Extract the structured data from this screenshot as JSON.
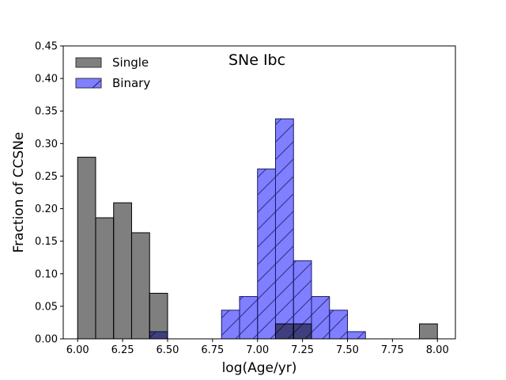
{
  "chart_data": {
    "type": "bar",
    "title": "SNe Ibc",
    "xlabel": "log(Age/yr)",
    "ylabel": "Fraction of CCSNe",
    "xlim": [
      5.92,
      8.1
    ],
    "ylim": [
      0.0,
      0.45
    ],
    "x_ticks": [
      "6.00",
      "6.25",
      "6.50",
      "6.75",
      "7.00",
      "7.25",
      "7.50",
      "7.75",
      "8.00"
    ],
    "x_tick_values": [
      6.0,
      6.25,
      6.5,
      6.75,
      7.0,
      7.25,
      7.5,
      7.75,
      8.0
    ],
    "y_ticks": [
      "0.00",
      "0.05",
      "0.10",
      "0.15",
      "0.20",
      "0.25",
      "0.30",
      "0.35",
      "0.40",
      "0.45"
    ],
    "y_tick_values": [
      0.0,
      0.05,
      0.1,
      0.15,
      0.2,
      0.25,
      0.3,
      0.35,
      0.4,
      0.45
    ],
    "bin_width": 0.1,
    "legend_position": "top-left",
    "series": [
      {
        "name": "Binary",
        "color": "#0000ff",
        "edge_color": "#1a1a66",
        "hatch": "/",
        "bins": [
          {
            "x": 6.4,
            "value": 0.011
          },
          {
            "x": 6.8,
            "value": 0.044
          },
          {
            "x": 6.9,
            "value": 0.065
          },
          {
            "x": 7.0,
            "value": 0.261
          },
          {
            "x": 7.1,
            "value": 0.338
          },
          {
            "x": 7.2,
            "value": 0.12
          },
          {
            "x": 7.3,
            "value": 0.065
          },
          {
            "x": 7.4,
            "value": 0.044
          },
          {
            "x": 7.5,
            "value": 0.011
          }
        ]
      },
      {
        "name": "Single",
        "color": "#000000",
        "edge_color": "#000000",
        "hatch": "",
        "bins": [
          {
            "x": 6.0,
            "value": 0.279
          },
          {
            "x": 6.1,
            "value": 0.186
          },
          {
            "x": 6.2,
            "value": 0.209
          },
          {
            "x": 6.3,
            "value": 0.163
          },
          {
            "x": 6.4,
            "value": 0.07
          },
          {
            "x": 7.1,
            "value": 0.023
          },
          {
            "x": 7.2,
            "value": 0.023
          },
          {
            "x": 7.9,
            "value": 0.023
          }
        ]
      }
    ],
    "legend": [
      {
        "label": "Single",
        "color": "#000000",
        "hatch": ""
      },
      {
        "label": "Binary",
        "color": "#0000ff",
        "hatch": "/"
      }
    ]
  }
}
